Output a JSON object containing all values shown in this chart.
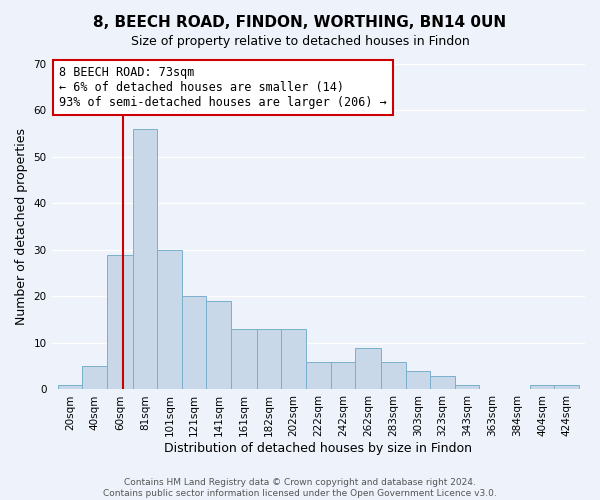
{
  "title": "8, BEECH ROAD, FINDON, WORTHING, BN14 0UN",
  "subtitle": "Size of property relative to detached houses in Findon",
  "xlabel": "Distribution of detached houses by size in Findon",
  "ylabel": "Number of detached properties",
  "bar_color": "#c8d8e8",
  "bar_edge_color": "#7ab0cc",
  "vline_color": "#cc0000",
  "vline_x": 73,
  "categories": [
    "20sqm",
    "40sqm",
    "60sqm",
    "81sqm",
    "101sqm",
    "121sqm",
    "141sqm",
    "161sqm",
    "182sqm",
    "202sqm",
    "222sqm",
    "242sqm",
    "262sqm",
    "283sqm",
    "303sqm",
    "323sqm",
    "343sqm",
    "363sqm",
    "384sqm",
    "404sqm",
    "424sqm"
  ],
  "bin_edges": [
    20,
    40,
    60,
    81,
    101,
    121,
    141,
    161,
    182,
    202,
    222,
    242,
    262,
    283,
    303,
    323,
    343,
    363,
    384,
    404,
    424,
    444
  ],
  "values": [
    1,
    5,
    29,
    56,
    30,
    20,
    19,
    13,
    13,
    13,
    6,
    6,
    9,
    6,
    4,
    3,
    1,
    0,
    0,
    1,
    1
  ],
  "ylim": [
    0,
    70
  ],
  "yticks": [
    0,
    10,
    20,
    30,
    40,
    50,
    60,
    70
  ],
  "annotation_text": "8 BEECH ROAD: 73sqm\n← 6% of detached houses are smaller (14)\n93% of semi-detached houses are larger (206) →",
  "annotation_box_color": "#ffffff",
  "annotation_box_edge": "#cc0000",
  "footer_line1": "Contains HM Land Registry data © Crown copyright and database right 2024.",
  "footer_line2": "Contains public sector information licensed under the Open Government Licence v3.0.",
  "background_color": "#eef2fb",
  "grid_color": "#ffffff",
  "title_fontsize": 11,
  "subtitle_fontsize": 9,
  "axis_label_fontsize": 9,
  "tick_fontsize": 7.5,
  "annotation_fontsize": 8.5,
  "footer_fontsize": 6.5
}
